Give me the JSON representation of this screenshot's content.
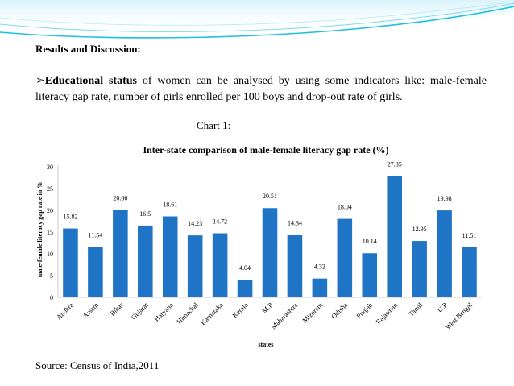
{
  "slide": {
    "heading": "Results  and  Discussion:",
    "bullet_glyph": "➢",
    "bullet_bold": "Educational  status",
    "bullet_text": " of  women  can  be  analysed  by  using  some  indicators  like:  male-female  literacy  gap  rate, number  of  girls  enrolled  per  100  boys  and  drop-out  rate  of  girls.",
    "chart_caption": "Chart 1:",
    "source": "Source:  Census  of  India,2011",
    "accent_color": "#1ec0df"
  },
  "chart_data": {
    "type": "bar",
    "title": "Inter-state comparison of male-female literacy gap rate (%)",
    "xlabel": "states",
    "ylabel": "male-female  literacy  gap  rate  in  %",
    "ylim": [
      0,
      30
    ],
    "yticks": [
      0,
      5,
      10,
      15,
      20,
      25,
      30
    ],
    "bar_color": "#1f74c6",
    "categories": [
      "Andhra",
      "Assam",
      "Bihar",
      "Gujarat",
      "Haryana",
      "Himachal",
      "Karnataka",
      "Kerala",
      "M.P",
      "Maharashtra",
      "Mizoram",
      "Odisha",
      "Punjab",
      "Rajasthan",
      "Tamil",
      "U.P",
      "West Bengal"
    ],
    "values": [
      15.82,
      11.54,
      20.06,
      16.5,
      18.61,
      14.23,
      14.72,
      4.04,
      20.51,
      14.34,
      4.32,
      18.04,
      10.14,
      27.85,
      12.95,
      19.98,
      11.51
    ],
    "value_labels": [
      "15.82",
      "11.54",
      "20.06",
      "16.5",
      "18.61",
      "14.23",
      "14.72",
      "4.04",
      "20.51",
      "14.34",
      "4.32",
      "18.04",
      "10.14",
      "27.85",
      "12.95",
      "19.98",
      "11.51"
    ]
  }
}
